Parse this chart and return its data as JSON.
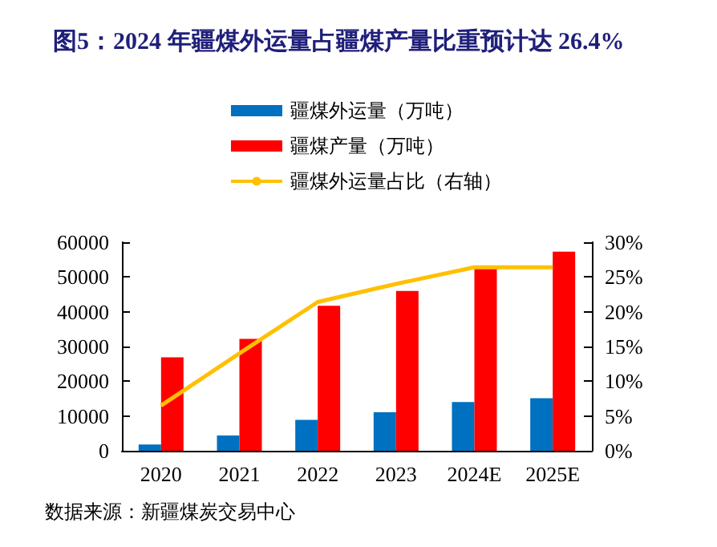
{
  "chart_data": {
    "type": "bar",
    "title": "图5：2024 年疆煤外运量占疆煤产量比重预计达 26.4%",
    "categories": [
      "2020",
      "2021",
      "2022",
      "2023",
      "2024E",
      "2025E"
    ],
    "series": [
      {
        "name": "疆煤外运量（万吨）",
        "color": "#0070c0",
        "values": [
          1800,
          4400,
          8900,
          11100,
          14000,
          15100
        ]
      },
      {
        "name": "疆煤产量（万吨）",
        "color": "#ff0000",
        "values": [
          26900,
          32200,
          41700,
          46000,
          52700,
          57300
        ]
      },
      {
        "name": "疆煤外运量占比（右轴）",
        "type": "line",
        "axis": "y2",
        "color": "#ffc000",
        "values": [
          6.5,
          14,
          21.4,
          24,
          26.4,
          26.4
        ]
      }
    ],
    "ylim": [
      0,
      60000
    ],
    "yticks": [
      0,
      10000,
      20000,
      30000,
      40000,
      50000,
      60000
    ],
    "y2lim": [
      0,
      30
    ],
    "y2ticks": [
      {
        "value": 0,
        "label": "0%"
      },
      {
        "value": 5,
        "label": "5%"
      },
      {
        "value": 10,
        "label": "10%"
      },
      {
        "value": 15,
        "label": "15%"
      },
      {
        "value": 20,
        "label": "20%"
      },
      {
        "value": 25,
        "label": "25%"
      },
      {
        "value": 30,
        "label": "30%"
      }
    ],
    "legend": "top",
    "grid": false,
    "marker": "none",
    "annotations": [
      "数据来源：新疆煤炭交易中心"
    ]
  }
}
